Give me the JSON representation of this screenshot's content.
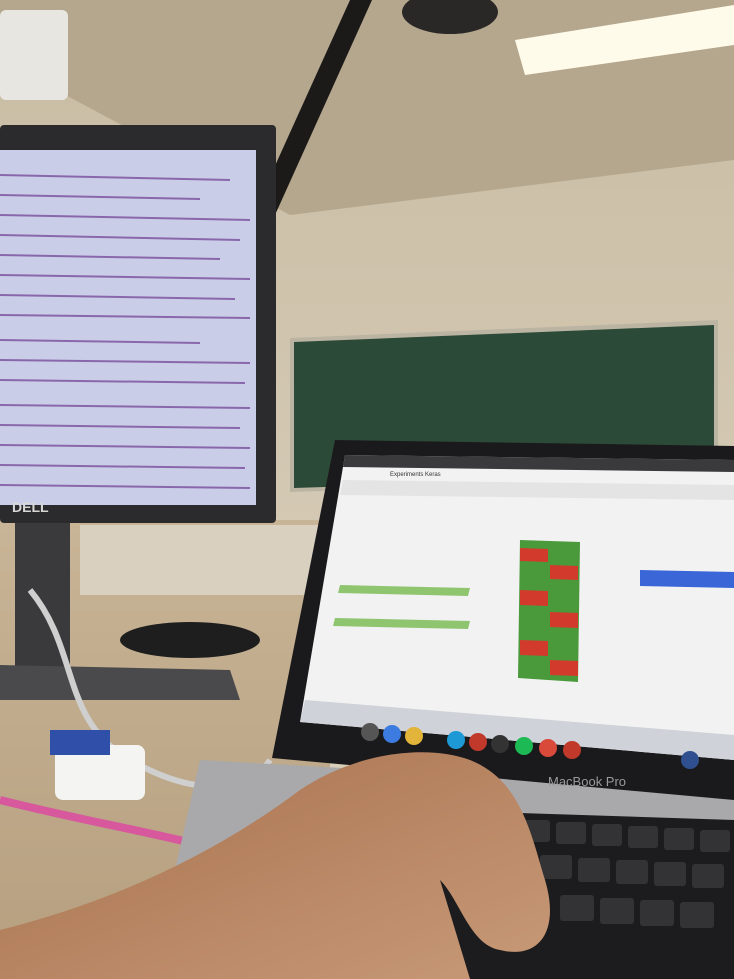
{
  "monitor": {
    "brand": "DELL"
  },
  "laptop": {
    "model": "MacBook Pro",
    "window_title": "Experiments Keras"
  }
}
